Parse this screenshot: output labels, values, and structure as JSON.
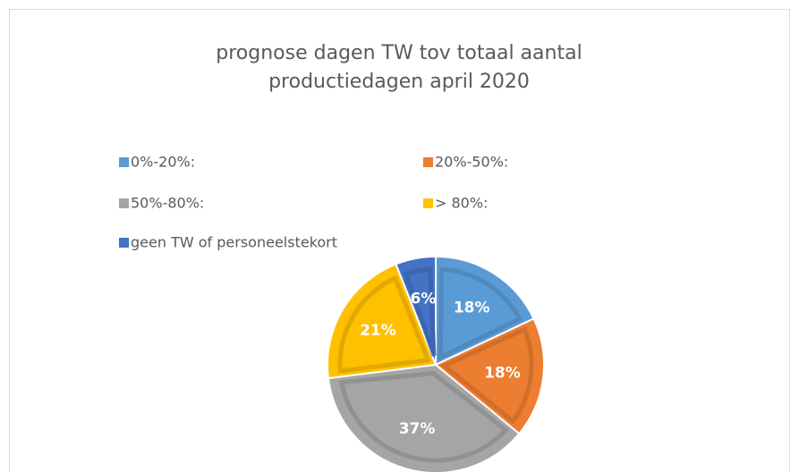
{
  "chart_data": {
    "type": "pie",
    "title": [
      "prognose dagen TW tov totaal aantal",
      "productiedagen april 2020"
    ],
    "categories": [
      "0%-20%:",
      "20%-50%:",
      "50%-80%:",
      "> 80%:",
      "geen TW of personeelstekort"
    ],
    "values": [
      18,
      18,
      37,
      21,
      6
    ],
    "value_labels": [
      "18%",
      "18%",
      "37%",
      "21%",
      "6%"
    ],
    "colors": [
      "#5b9bd5",
      "#ed7d31",
      "#a5a5a5",
      "#ffc000",
      "#4472c4"
    ],
    "legend": "top"
  }
}
